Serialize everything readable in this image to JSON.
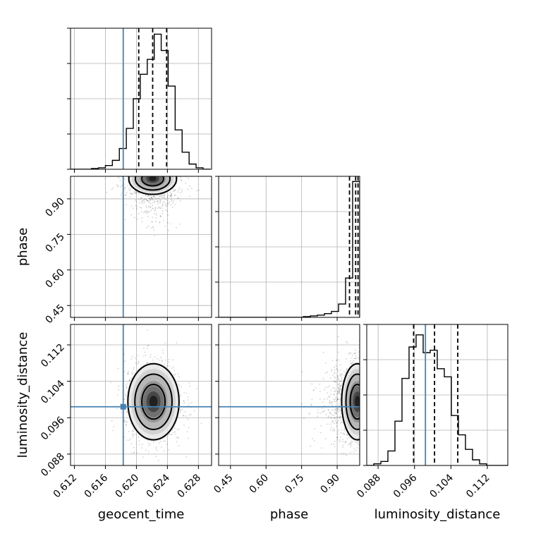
{
  "colors": {
    "truth": "#4682b4",
    "hist": "#000000",
    "grid": "#b0b0b0",
    "density": [
      "#e8e8e8",
      "#cfcfcf",
      "#b3b3b3",
      "#8f8f8f",
      "#6a6a6a",
      "#3f3f3f",
      "#1a1a1a"
    ]
  },
  "chart_data": {
    "type": "corner",
    "parameters": [
      {
        "name": "geocent_time",
        "label": "geocent_time",
        "range": [
          0.6115,
          0.6297
        ],
        "ticks": [
          0.612,
          0.616,
          0.62,
          0.624,
          0.628
        ],
        "tick_labels": [
          "0.612",
          "0.616",
          "0.620",
          "0.624",
          "0.628"
        ],
        "truth": 0.6183,
        "quantiles": [
          0.6203,
          0.6221,
          0.6239
        ],
        "hist": {
          "edges_start": 0.6115,
          "bin_width": 0.0009,
          "counts": [
            0,
            0,
            0,
            1,
            2,
            5,
            12,
            28,
            55,
            95,
            128,
            148,
            182,
            160,
            112,
            53,
            23,
            7,
            2,
            0
          ]
        },
        "hist_ylim": [
          0,
          190
        ]
      },
      {
        "name": "phase",
        "label": "phase",
        "range": [
          0.4,
          0.995
        ],
        "ticks": [
          0.45,
          0.6,
          0.75,
          0.9
        ],
        "tick_labels": [
          "0.45",
          "0.60",
          "0.75",
          "0.90"
        ],
        "truth": null,
        "quantiles": [
          0.952,
          0.978,
          0.988
        ],
        "hist": {
          "edges_start": 0.4,
          "bin_width": 0.02975,
          "counts": [
            0,
            0,
            0,
            0,
            0,
            0,
            0,
            0,
            0,
            0,
            0,
            0,
            1,
            2,
            3,
            5,
            8,
            18,
            53,
            183
          ]
        },
        "hist_ylim": [
          0,
          190
        ]
      },
      {
        "name": "luminosity_distance",
        "label": "luminosity_distance",
        "range": [
          0.0855,
          0.1165
        ],
        "ticks": [
          0.088,
          0.096,
          0.104,
          0.112
        ],
        "tick_labels": [
          "0.088",
          "0.096",
          "0.104",
          "0.112"
        ],
        "truth": 0.0984,
        "quantiles": [
          0.0958,
          0.1004,
          0.1055
        ],
        "hist": {
          "edges_start": 0.0855,
          "bin_width": 0.00155,
          "counts": [
            0,
            2,
            5,
            18,
            55,
            108,
            147,
            162,
            140,
            143,
            120,
            110,
            62,
            38,
            20,
            7,
            2,
            0,
            0,
            0
          ]
        },
        "hist_ylim": [
          0,
          175
        ]
      }
    ],
    "pairs": [
      {
        "x": "geocent_time",
        "y": "phase",
        "mode": [
          0.6221,
          0.985
        ],
        "sigma": [
          0.0014,
          0.03
        ],
        "corr": 0
      },
      {
        "x": "geocent_time",
        "y": "luminosity_distance",
        "mode": [
          0.6222,
          0.0995
        ],
        "sigma": [
          0.0015,
          0.0038
        ],
        "corr": 0
      },
      {
        "x": "phase",
        "y": "luminosity_distance",
        "mode": [
          0.985,
          0.0995
        ],
        "sigma": [
          0.03,
          0.0038
        ],
        "corr": 0
      }
    ],
    "contour_levels_sigma": [
      1.0,
      1.6,
      2.2
    ],
    "xlabels": [
      "geocent_time",
      "phase",
      "luminosity_distance"
    ],
    "ylabels": [
      "phase",
      "luminosity_distance"
    ]
  }
}
